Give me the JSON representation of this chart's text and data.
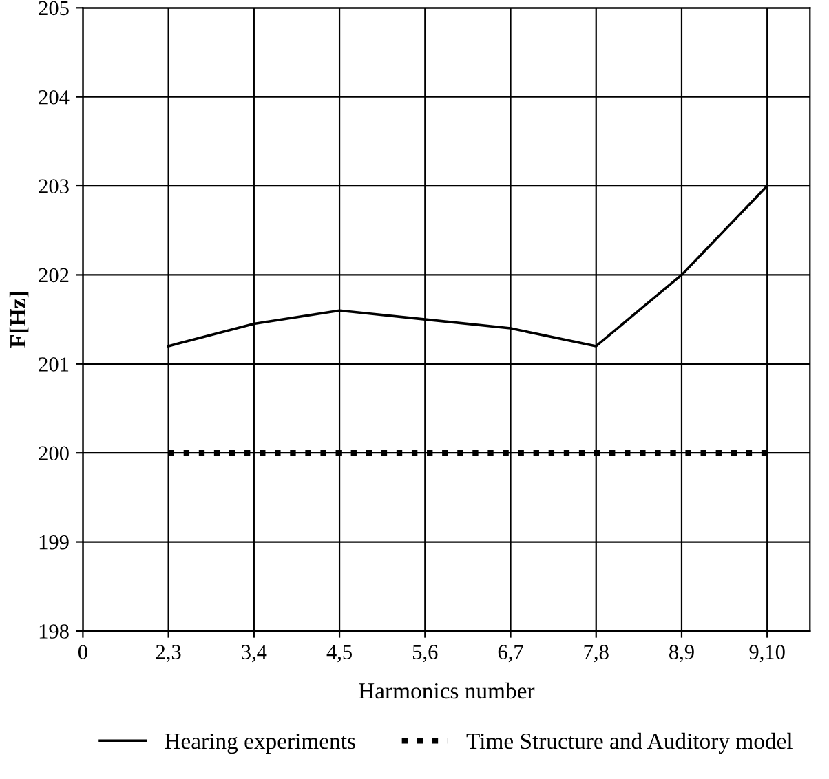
{
  "chart_data": {
    "type": "line",
    "xlabel": "Harmonics number",
    "ylabel": "F[Hz]",
    "categories": [
      "0",
      "2,3",
      "3,4",
      "4,5",
      "5,6",
      "6,7",
      "7,8",
      "8,9",
      "9,10"
    ],
    "ylim": [
      198,
      205
    ],
    "yticks": [
      198,
      199,
      200,
      201,
      202,
      203,
      204,
      205
    ],
    "grid": true,
    "legend": "bottom",
    "series": [
      {
        "name": "Hearing experiments",
        "color": "#000000",
        "line_style": "solid",
        "values": [
          null,
          201.2,
          201.45,
          201.6,
          201.5,
          201.4,
          201.2,
          202.0,
          203.0
        ]
      },
      {
        "name": "Time Structure and Auditory model",
        "color": "#000000",
        "line_style": "dotted",
        "values": [
          null,
          200,
          200,
          200,
          200,
          200,
          200,
          200,
          200
        ]
      }
    ]
  }
}
